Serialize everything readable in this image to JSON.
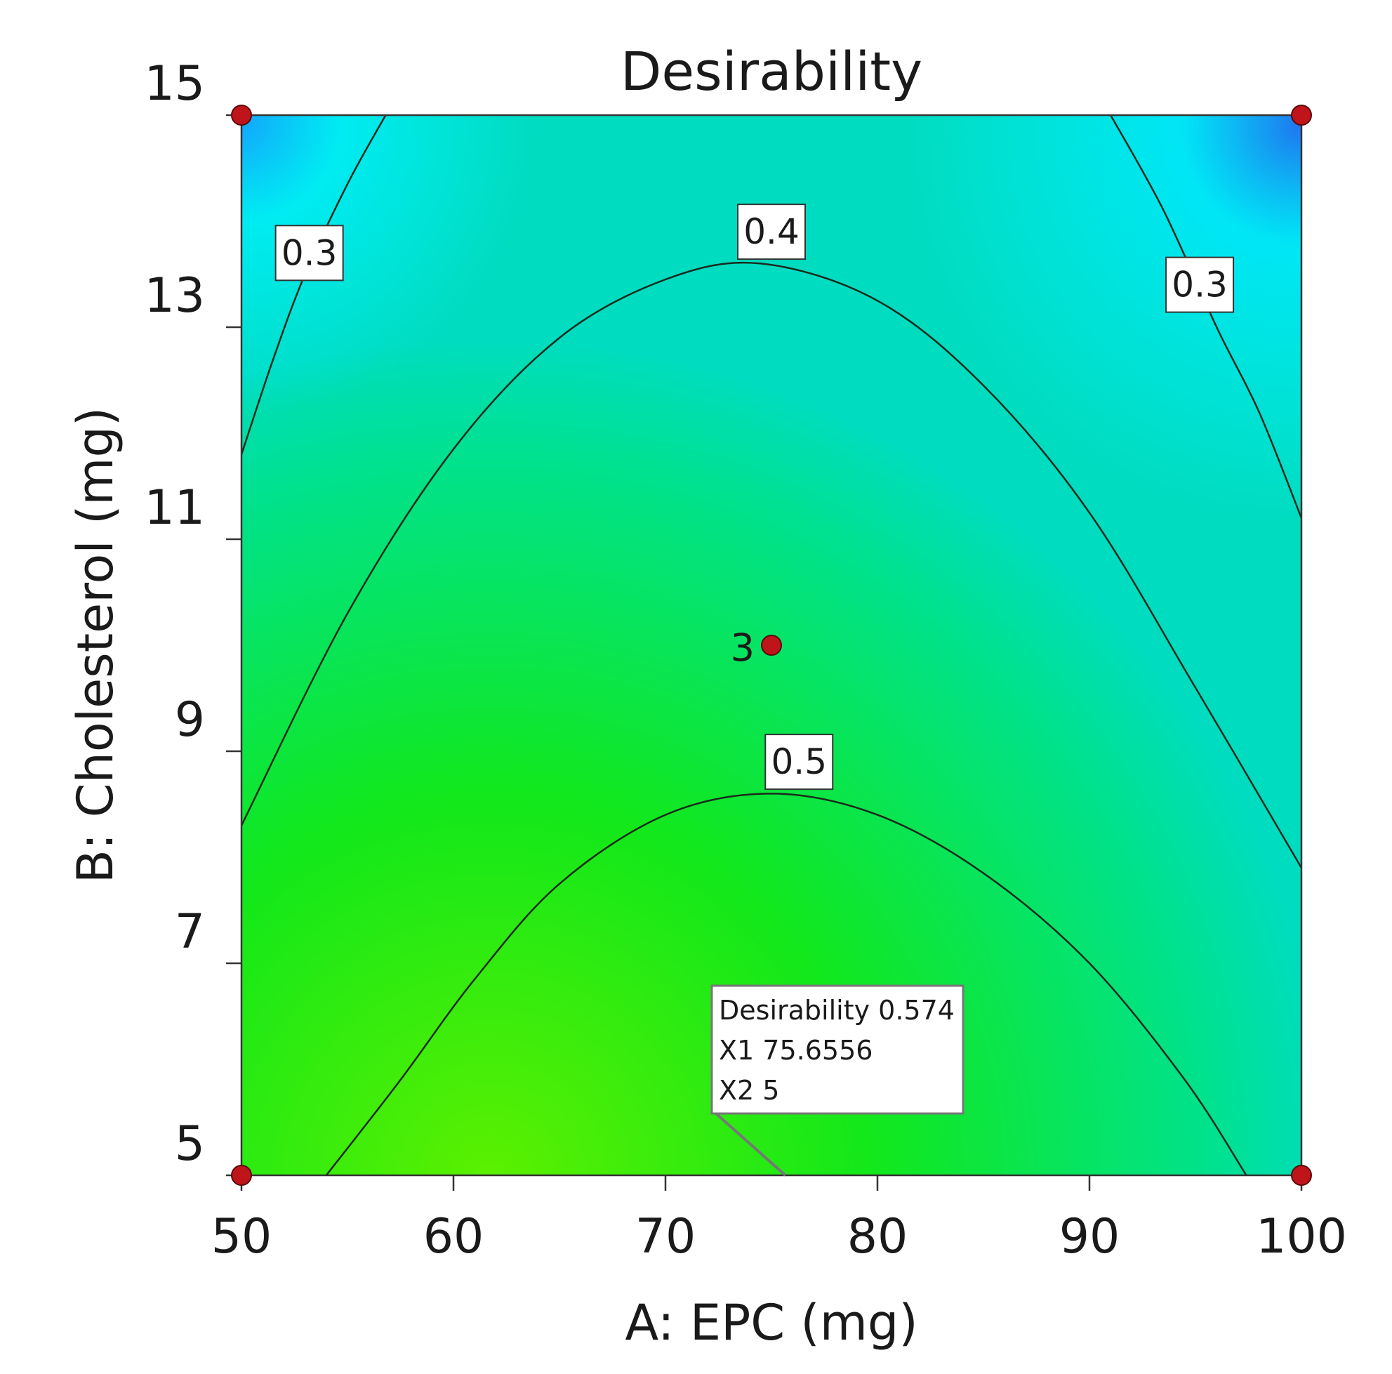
{
  "chart_data": {
    "type": "contour",
    "title": "Desirability",
    "xlabel": "A: EPC  (mg)",
    "ylabel": "B: Cholesterol  (mg)",
    "xlim": [
      50,
      100
    ],
    "ylim": [
      5,
      15
    ],
    "x_ticks": [
      50,
      60,
      70,
      80,
      90,
      100
    ],
    "y_ticks": [
      5,
      7,
      9,
      11,
      13,
      15
    ],
    "color_scale": [
      "#1e78f0",
      "#00f0ff",
      "#00e28c",
      "#12e81a",
      "#5cf000"
    ],
    "contours": [
      {
        "level": "0.3",
        "segments": [
          {
            "points": [
              [
                50.0,
                11.8
              ],
              [
                51.5,
                12.7
              ],
              [
                53.0,
                13.5
              ],
              [
                55.0,
                14.35
              ],
              [
                56.8,
                15.0
              ]
            ],
            "label_at": [
              53.2,
              13.7
            ]
          },
          {
            "points": [
              [
                91.0,
                15.0
              ],
              [
                93.5,
                14.1
              ],
              [
                96.0,
                13.0
              ],
              [
                98.0,
                12.2
              ],
              [
                100.0,
                11.2
              ]
            ],
            "label_at": [
              95.2,
              13.4
            ]
          }
        ]
      },
      {
        "level": "0.4",
        "segments": [
          {
            "points": [
              [
                50.0,
                8.3
              ],
              [
                55.0,
                10.3
              ],
              [
                60.0,
                11.85
              ],
              [
                65.0,
                12.9
              ],
              [
                70.0,
                13.45
              ],
              [
                74.5,
                13.6
              ],
              [
                80.0,
                13.25
              ],
              [
                85.0,
                12.45
              ],
              [
                90.0,
                11.25
              ],
              [
                95.0,
                9.6
              ],
              [
                100.0,
                7.9
              ]
            ],
            "label_at": [
              75.0,
              13.9
            ]
          }
        ]
      },
      {
        "level": "0.5",
        "segments": [
          {
            "points": [
              [
                54.0,
                5.0
              ],
              [
                57.5,
                5.9
              ],
              [
                61.0,
                6.85
              ],
              [
                65.0,
                7.75
              ],
              [
                70.0,
                8.4
              ],
              [
                75.0,
                8.6
              ],
              [
                80.0,
                8.4
              ],
              [
                85.0,
                7.85
              ],
              [
                90.0,
                7.0
              ],
              [
                94.5,
                5.9
              ],
              [
                97.4,
                5.0
              ]
            ],
            "label_at": [
              76.3,
              8.9
            ]
          }
        ]
      }
    ],
    "design_points": [
      {
        "x": 50,
        "y": 15,
        "label": ""
      },
      {
        "x": 100,
        "y": 15,
        "label": ""
      },
      {
        "x": 75,
        "y": 10,
        "label": "3"
      },
      {
        "x": 50,
        "y": 5,
        "label": ""
      },
      {
        "x": 100,
        "y": 5,
        "label": ""
      }
    ],
    "flag": {
      "point": [
        75.6556,
        5
      ],
      "lines": [
        "Desirability  0.574",
        "X1  75.6556",
        "X2  5"
      ]
    },
    "grid": false,
    "legend": "none"
  }
}
